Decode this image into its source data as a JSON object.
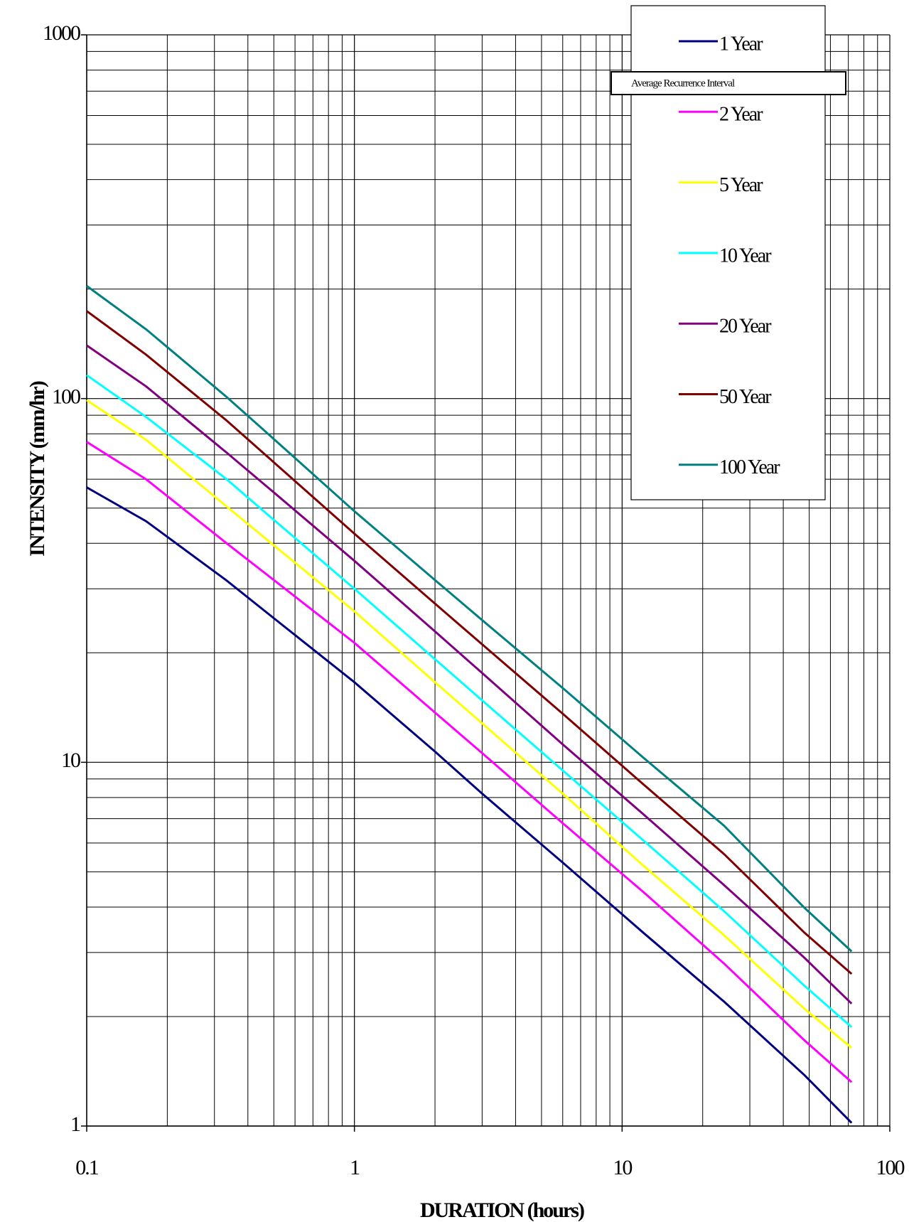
{
  "chart_data": {
    "type": "line",
    "x_label": "DURATION (hours)",
    "y_label": "INTENSITY (mm/hr)",
    "legend_title": "Average Recurrence Interval",
    "x": [
      0.1,
      0.1667,
      0.3333,
      0.5,
      1,
      2,
      3,
      6,
      12,
      24,
      48,
      72
    ],
    "series": [
      {
        "name": "1 Year",
        "color": "#000080",
        "values": [
          57,
          46,
          31.6,
          24.9,
          16.6,
          10.7,
          8.2,
          5.3,
          3.4,
          2.2,
          1.38,
          1.02
        ]
      },
      {
        "name": "2 Year",
        "color": "#ff00ff",
        "values": [
          76,
          60,
          40,
          31.7,
          21.3,
          13.7,
          10.6,
          6.8,
          4.4,
          2.8,
          1.72,
          1.32
        ]
      },
      {
        "name": "5 Year",
        "color": "#ffff00",
        "values": [
          99,
          77,
          50.5,
          39.5,
          26,
          16.6,
          12.8,
          8.2,
          5.2,
          3.35,
          2.1,
          1.64
        ]
      },
      {
        "name": "10 Year",
        "color": "#00ffff",
        "values": [
          116,
          89,
          60,
          46.4,
          30,
          19.2,
          14.8,
          9.5,
          6.1,
          3.9,
          2.43,
          1.87
        ]
      },
      {
        "name": "20 Year",
        "color": "#800080",
        "values": [
          140,
          108,
          71,
          55.2,
          35.8,
          22.9,
          17.6,
          11.2,
          7.2,
          4.6,
          2.9,
          2.17
        ]
      },
      {
        "name": "50 Year",
        "color": "#800000",
        "values": [
          174,
          132,
          87,
          66.8,
          42.5,
          27.3,
          21.1,
          13.6,
          8.7,
          5.6,
          3.4,
          2.62
        ]
      },
      {
        "name": "100 Year",
        "color": "#008080",
        "values": [
          204,
          155,
          101,
          77.4,
          49,
          31.7,
          24.6,
          16.0,
          10.3,
          6.7,
          3.98,
          3.02
        ]
      }
    ],
    "xlim": [
      0.1,
      100
    ],
    "ylim": [
      1,
      1000
    ],
    "xticks": [
      0.1,
      1,
      10,
      100
    ],
    "yticks": [
      1,
      10,
      100,
      1000
    ],
    "x_log": true,
    "y_log": true,
    "grid": true,
    "minor_grid": true,
    "legend_position": "top-right"
  }
}
